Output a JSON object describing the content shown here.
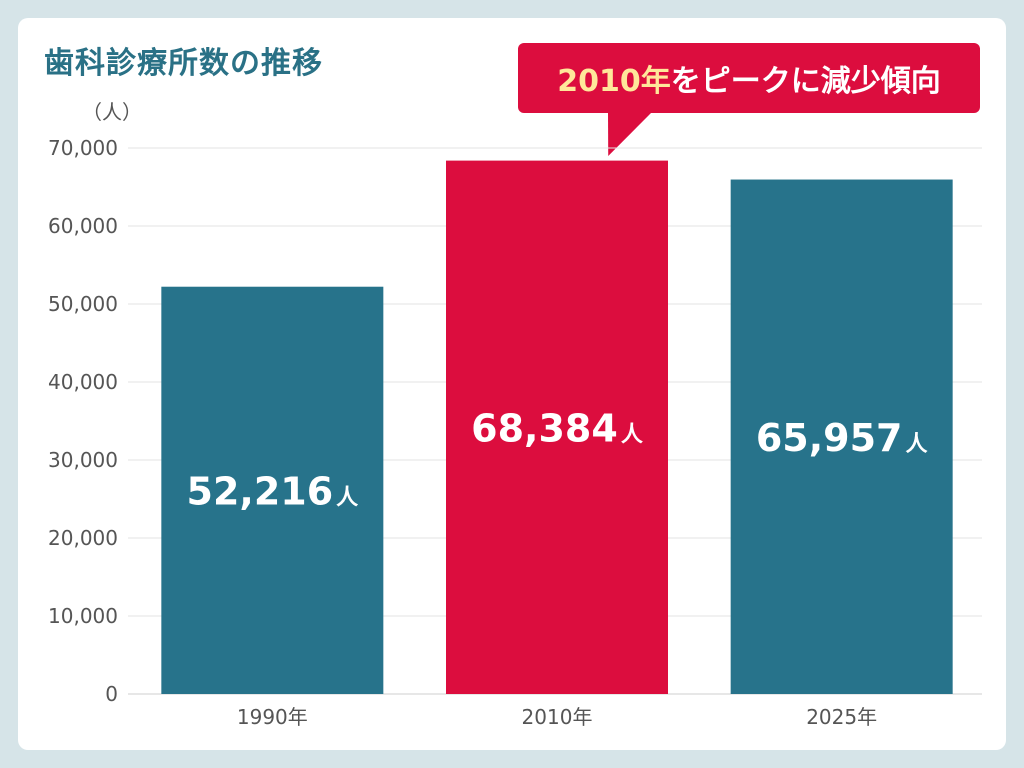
{
  "title": "歯科診療所数の推移",
  "unit_label": "（人）",
  "callout": {
    "highlight": "2010年",
    "text": "をピークに減少傾向"
  },
  "colors": {
    "default_bar": "#27738b",
    "highlight_bar": "#dc0d3e",
    "callout_highlight": "#ffe79a"
  },
  "chart_data": {
    "type": "bar",
    "categories": [
      "1990年",
      "2010年",
      "2025年"
    ],
    "values": [
      52216,
      68384,
      65957
    ],
    "value_labels": [
      "52,216",
      "68,384",
      "65,957"
    ],
    "value_unit": "人",
    "highlight_index": 1,
    "ylim": [
      0,
      70000
    ],
    "yticks": [
      0,
      10000,
      20000,
      30000,
      40000,
      50000,
      60000,
      70000
    ],
    "ytick_labels": [
      "0",
      "10,000",
      "20,000",
      "30,000",
      "40,000",
      "50,000",
      "60,000",
      "70,000"
    ],
    "grid": true,
    "xlabel": "",
    "ylabel": ""
  }
}
